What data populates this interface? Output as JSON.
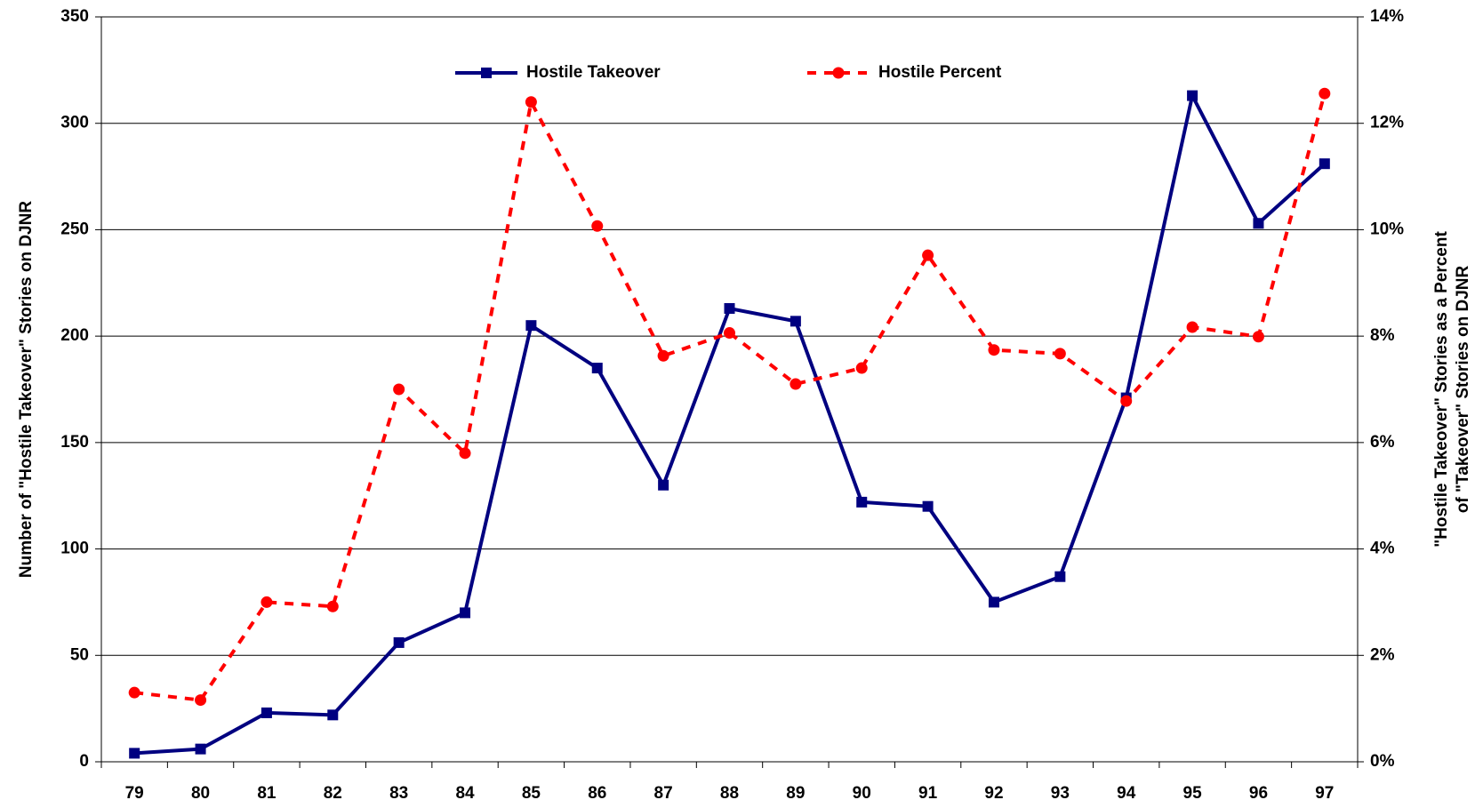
{
  "chart_data": {
    "type": "line",
    "ylabel": "Number of \"Hostile Takeover\" Stories on DJNR",
    "y2label": [
      "\"Hostile Takeover\" Stories as a Percent",
      "of \"Takeover\" Stories on DJNR"
    ],
    "categories": [
      "79",
      "80",
      "81",
      "82",
      "83",
      "84",
      "85",
      "86",
      "87",
      "88",
      "89",
      "90",
      "91",
      "92",
      "93",
      "94",
      "95",
      "96",
      "97"
    ],
    "series": [
      {
        "name": "Hostile Takeover",
        "color": "#000080",
        "marker": "square",
        "dashed": false,
        "axis": "y",
        "values": [
          4,
          6,
          23,
          22,
          56,
          70,
          205,
          185,
          130,
          213,
          207,
          122,
          120,
          75,
          87,
          171,
          313,
          253,
          281
        ]
      },
      {
        "name": "Hostile Percent",
        "color": "#ff0000",
        "marker": "circle",
        "dashed": true,
        "axis": "y2",
        "values": [
          1.3,
          1.16,
          3.0,
          2.92,
          7.0,
          5.8,
          12.4,
          10.07,
          7.63,
          8.06,
          7.1,
          7.4,
          9.52,
          7.74,
          7.67,
          6.78,
          8.17,
          7.99,
          12.56
        ]
      }
    ],
    "ylim": [
      0,
      350
    ],
    "yticks": [
      0,
      50,
      100,
      150,
      200,
      250,
      300,
      350
    ],
    "y2lim": [
      0,
      14
    ],
    "y2ticks": [
      {
        "value": 0,
        "label": "0%"
      },
      {
        "value": 2,
        "label": "2%"
      },
      {
        "value": 4,
        "label": "4%"
      },
      {
        "value": 6,
        "label": "6%"
      },
      {
        "value": 8,
        "label": "8%"
      },
      {
        "value": 10,
        "label": "10%"
      },
      {
        "value": 12,
        "label": "12%"
      },
      {
        "value": 14,
        "label": "14%"
      }
    ],
    "grid": true,
    "legend": "top"
  }
}
